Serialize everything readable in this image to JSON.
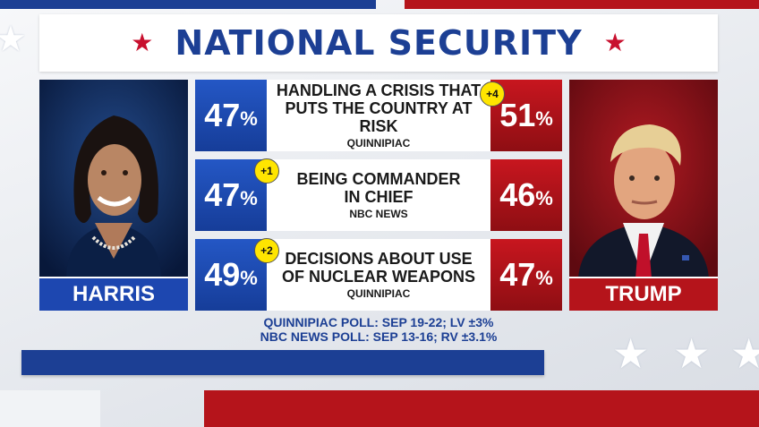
{
  "title": "NATIONAL SECURITY",
  "candidates": {
    "left": {
      "name": "HARRIS",
      "color": "#1d47b0"
    },
    "right": {
      "name": "TRUMP",
      "color": "#b5141b"
    }
  },
  "rows": [
    {
      "issue_line1": "HANDLING A CRISIS THAT",
      "issue_line2": "PUTS THE COUNTRY AT RISK",
      "source": "QUINNIPIAC",
      "harris": "47",
      "trump": "51",
      "lead": "+4",
      "lead_side": "trump"
    },
    {
      "issue_line1": "BEING COMMANDER",
      "issue_line2": "IN CHIEF",
      "source": "NBC NEWS",
      "harris": "47",
      "trump": "46",
      "lead": "+1",
      "lead_side": "harris"
    },
    {
      "issue_line1": "DECISIONS ABOUT USE",
      "issue_line2": "OF NUCLEAR WEAPONS",
      "source": "QUINNIPIAC",
      "harris": "49",
      "trump": "47",
      "lead": "+2",
      "lead_side": "harris"
    }
  ],
  "percent_sign": "%",
  "footnotes": [
    "QUINNIPIAC POLL: SEP 19-22; LV ±3%",
    "NBC NEWS POLL: SEP 13-16; RV ±3.1%"
  ],
  "colors": {
    "accent_blue": "#1c3f94",
    "accent_red": "#b5141b",
    "badge_yellow": "#ffe500"
  },
  "icons": {
    "title_star": "star-icon",
    "decor_star": "star-icon"
  }
}
